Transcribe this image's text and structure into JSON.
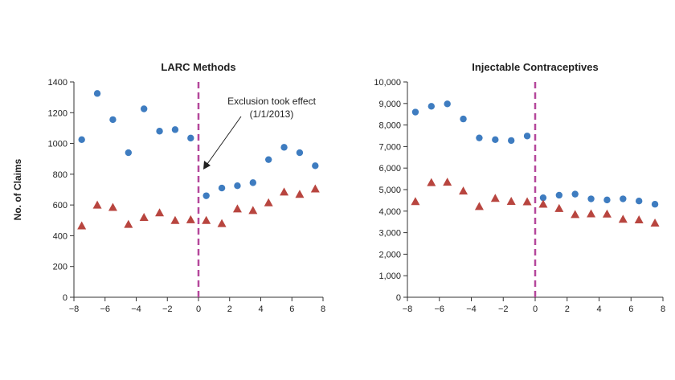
{
  "colors": {
    "blue": "#3e7cc0",
    "red": "#b8453f",
    "divider": "#b5479b",
    "axis": "#333333"
  },
  "ylabel": "No. of Claims",
  "chart_data": [
    {
      "type": "scatter",
      "title": "LARC Methods",
      "xlim": [
        -8,
        8
      ],
      "ylim": [
        0,
        1400
      ],
      "xticks": [
        -8,
        -6,
        -4,
        -2,
        0,
        2,
        4,
        6,
        8
      ],
      "yticks": [
        0,
        200,
        400,
        600,
        800,
        1000,
        1200,
        1400
      ],
      "ytick_labels": [
        "0",
        "200",
        "400",
        "600",
        "800",
        "1000",
        "1200",
        "1400"
      ],
      "vline": 0,
      "annotation": {
        "lines": [
          "Exclusion took effect",
          "(1/1/2013)"
        ]
      },
      "series": [
        {
          "marker": "circle",
          "color": "#3e7cc0",
          "points": [
            [
              -7.5,
              1025
            ],
            [
              -6.5,
              1325
            ],
            [
              -5.5,
              1155
            ],
            [
              -4.5,
              940
            ],
            [
              -3.5,
              1225
            ],
            [
              -2.5,
              1080
            ],
            [
              -1.5,
              1090
            ],
            [
              -0.5,
              1035
            ],
            [
              0.5,
              660
            ],
            [
              1.5,
              710
            ],
            [
              2.5,
              725
            ],
            [
              3.5,
              745
            ],
            [
              4.5,
              895
            ],
            [
              5.5,
              975
            ],
            [
              6.5,
              940
            ],
            [
              7.5,
              855
            ]
          ]
        },
        {
          "marker": "triangle",
          "color": "#b8453f",
          "points": [
            [
              -7.5,
              465
            ],
            [
              -6.5,
              600
            ],
            [
              -5.5,
              585
            ],
            [
              -4.5,
              475
            ],
            [
              -3.5,
              520
            ],
            [
              -2.5,
              550
            ],
            [
              -1.5,
              500
            ],
            [
              -0.5,
              505
            ],
            [
              0.5,
              500
            ],
            [
              1.5,
              480
            ],
            [
              2.5,
              575
            ],
            [
              3.5,
              565
            ],
            [
              4.5,
              615
            ],
            [
              5.5,
              685
            ],
            [
              6.5,
              670
            ],
            [
              7.5,
              705
            ]
          ]
        }
      ]
    },
    {
      "type": "scatter",
      "title": "Injectable Contraceptives",
      "xlim": [
        -8,
        8
      ],
      "ylim": [
        0,
        10000
      ],
      "xticks": [
        -8,
        -6,
        -4,
        -2,
        0,
        2,
        4,
        6,
        8
      ],
      "yticks": [
        0,
        1000,
        2000,
        3000,
        4000,
        5000,
        6000,
        7000,
        8000,
        9000,
        10000
      ],
      "ytick_labels": [
        "0",
        "1,000",
        "2,000",
        "3,000",
        "4,000",
        "5,000",
        "6,000",
        "7,000",
        "8,000",
        "9,000",
        "10,000"
      ],
      "vline": 0,
      "series": [
        {
          "marker": "circle",
          "color": "#3e7cc0",
          "points": [
            [
              -7.5,
              8600
            ],
            [
              -6.5,
              8870
            ],
            [
              -5.5,
              8980
            ],
            [
              -4.5,
              8280
            ],
            [
              -3.5,
              7400
            ],
            [
              -2.5,
              7320
            ],
            [
              -1.5,
              7280
            ],
            [
              -0.5,
              7490
            ],
            [
              0.5,
              4620
            ],
            [
              1.5,
              4740
            ],
            [
              2.5,
              4790
            ],
            [
              3.5,
              4570
            ],
            [
              4.5,
              4520
            ],
            [
              5.5,
              4570
            ],
            [
              6.5,
              4470
            ],
            [
              7.5,
              4320
            ]
          ]
        },
        {
          "marker": "triangle",
          "color": "#b8453f",
          "points": [
            [
              -7.5,
              4450
            ],
            [
              -6.5,
              5330
            ],
            [
              -5.5,
              5350
            ],
            [
              -4.5,
              4940
            ],
            [
              -3.5,
              4220
            ],
            [
              -2.5,
              4600
            ],
            [
              -1.5,
              4460
            ],
            [
              -0.5,
              4440
            ],
            [
              0.5,
              4330
            ],
            [
              1.5,
              4130
            ],
            [
              2.5,
              3850
            ],
            [
              3.5,
              3880
            ],
            [
              4.5,
              3870
            ],
            [
              5.5,
              3630
            ],
            [
              6.5,
              3600
            ],
            [
              7.5,
              3450
            ]
          ]
        }
      ]
    }
  ]
}
